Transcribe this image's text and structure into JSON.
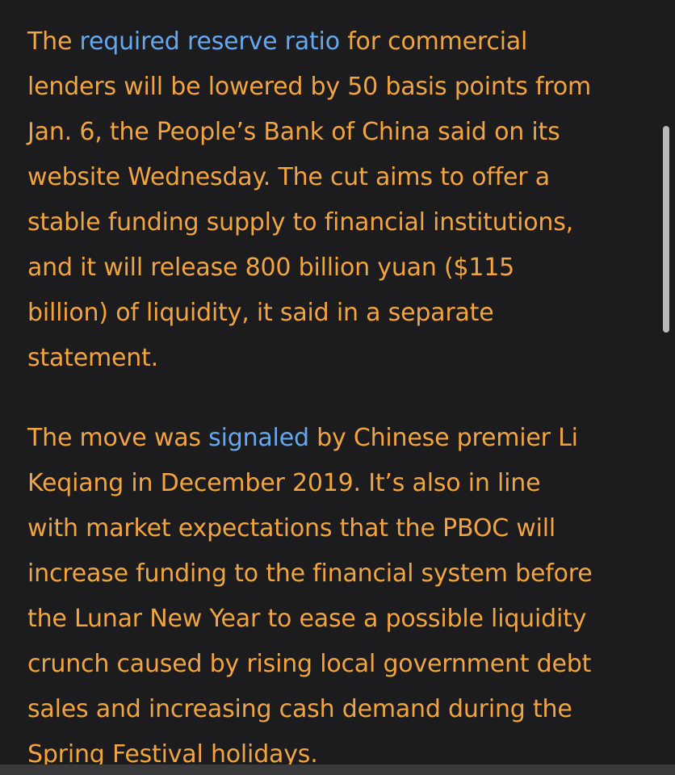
{
  "article": {
    "paragraph1": {
      "line1_pre": "The ",
      "line1_link": "required reserve ratio",
      "line1_post": " for commercial",
      "line2": "lenders will be lowered by 50 basis points from",
      "line3": "Jan. 6, the People’s Bank of China said on its",
      "line4": "website Wednesday. The cut aims to offer a",
      "line5": "stable funding supply to financial institutions,",
      "line6": "and it will release 800 billion yuan ($115",
      "line7": "billion) of liquidity, it said in a separate",
      "line8": "statement."
    },
    "paragraph2": {
      "line1_pre": "The move was ",
      "line1_link": "signaled",
      "line1_post": " by Chinese premier Li",
      "line2": "Keqiang in December 2019. It’s also in line",
      "line3": "with market expectations that the PBOC will",
      "line4": "increase funding to the financial system before",
      "line5": "the Lunar New Year to ease a possible liquidity",
      "line6": "crunch caused by rising local government debt",
      "line7": "sales and increasing cash demand during the",
      "line8": "Spring Festival holidays."
    }
  },
  "colors": {
    "background": "#1c1c1e",
    "text": "#f2a53d",
    "link": "#64a8f0"
  }
}
